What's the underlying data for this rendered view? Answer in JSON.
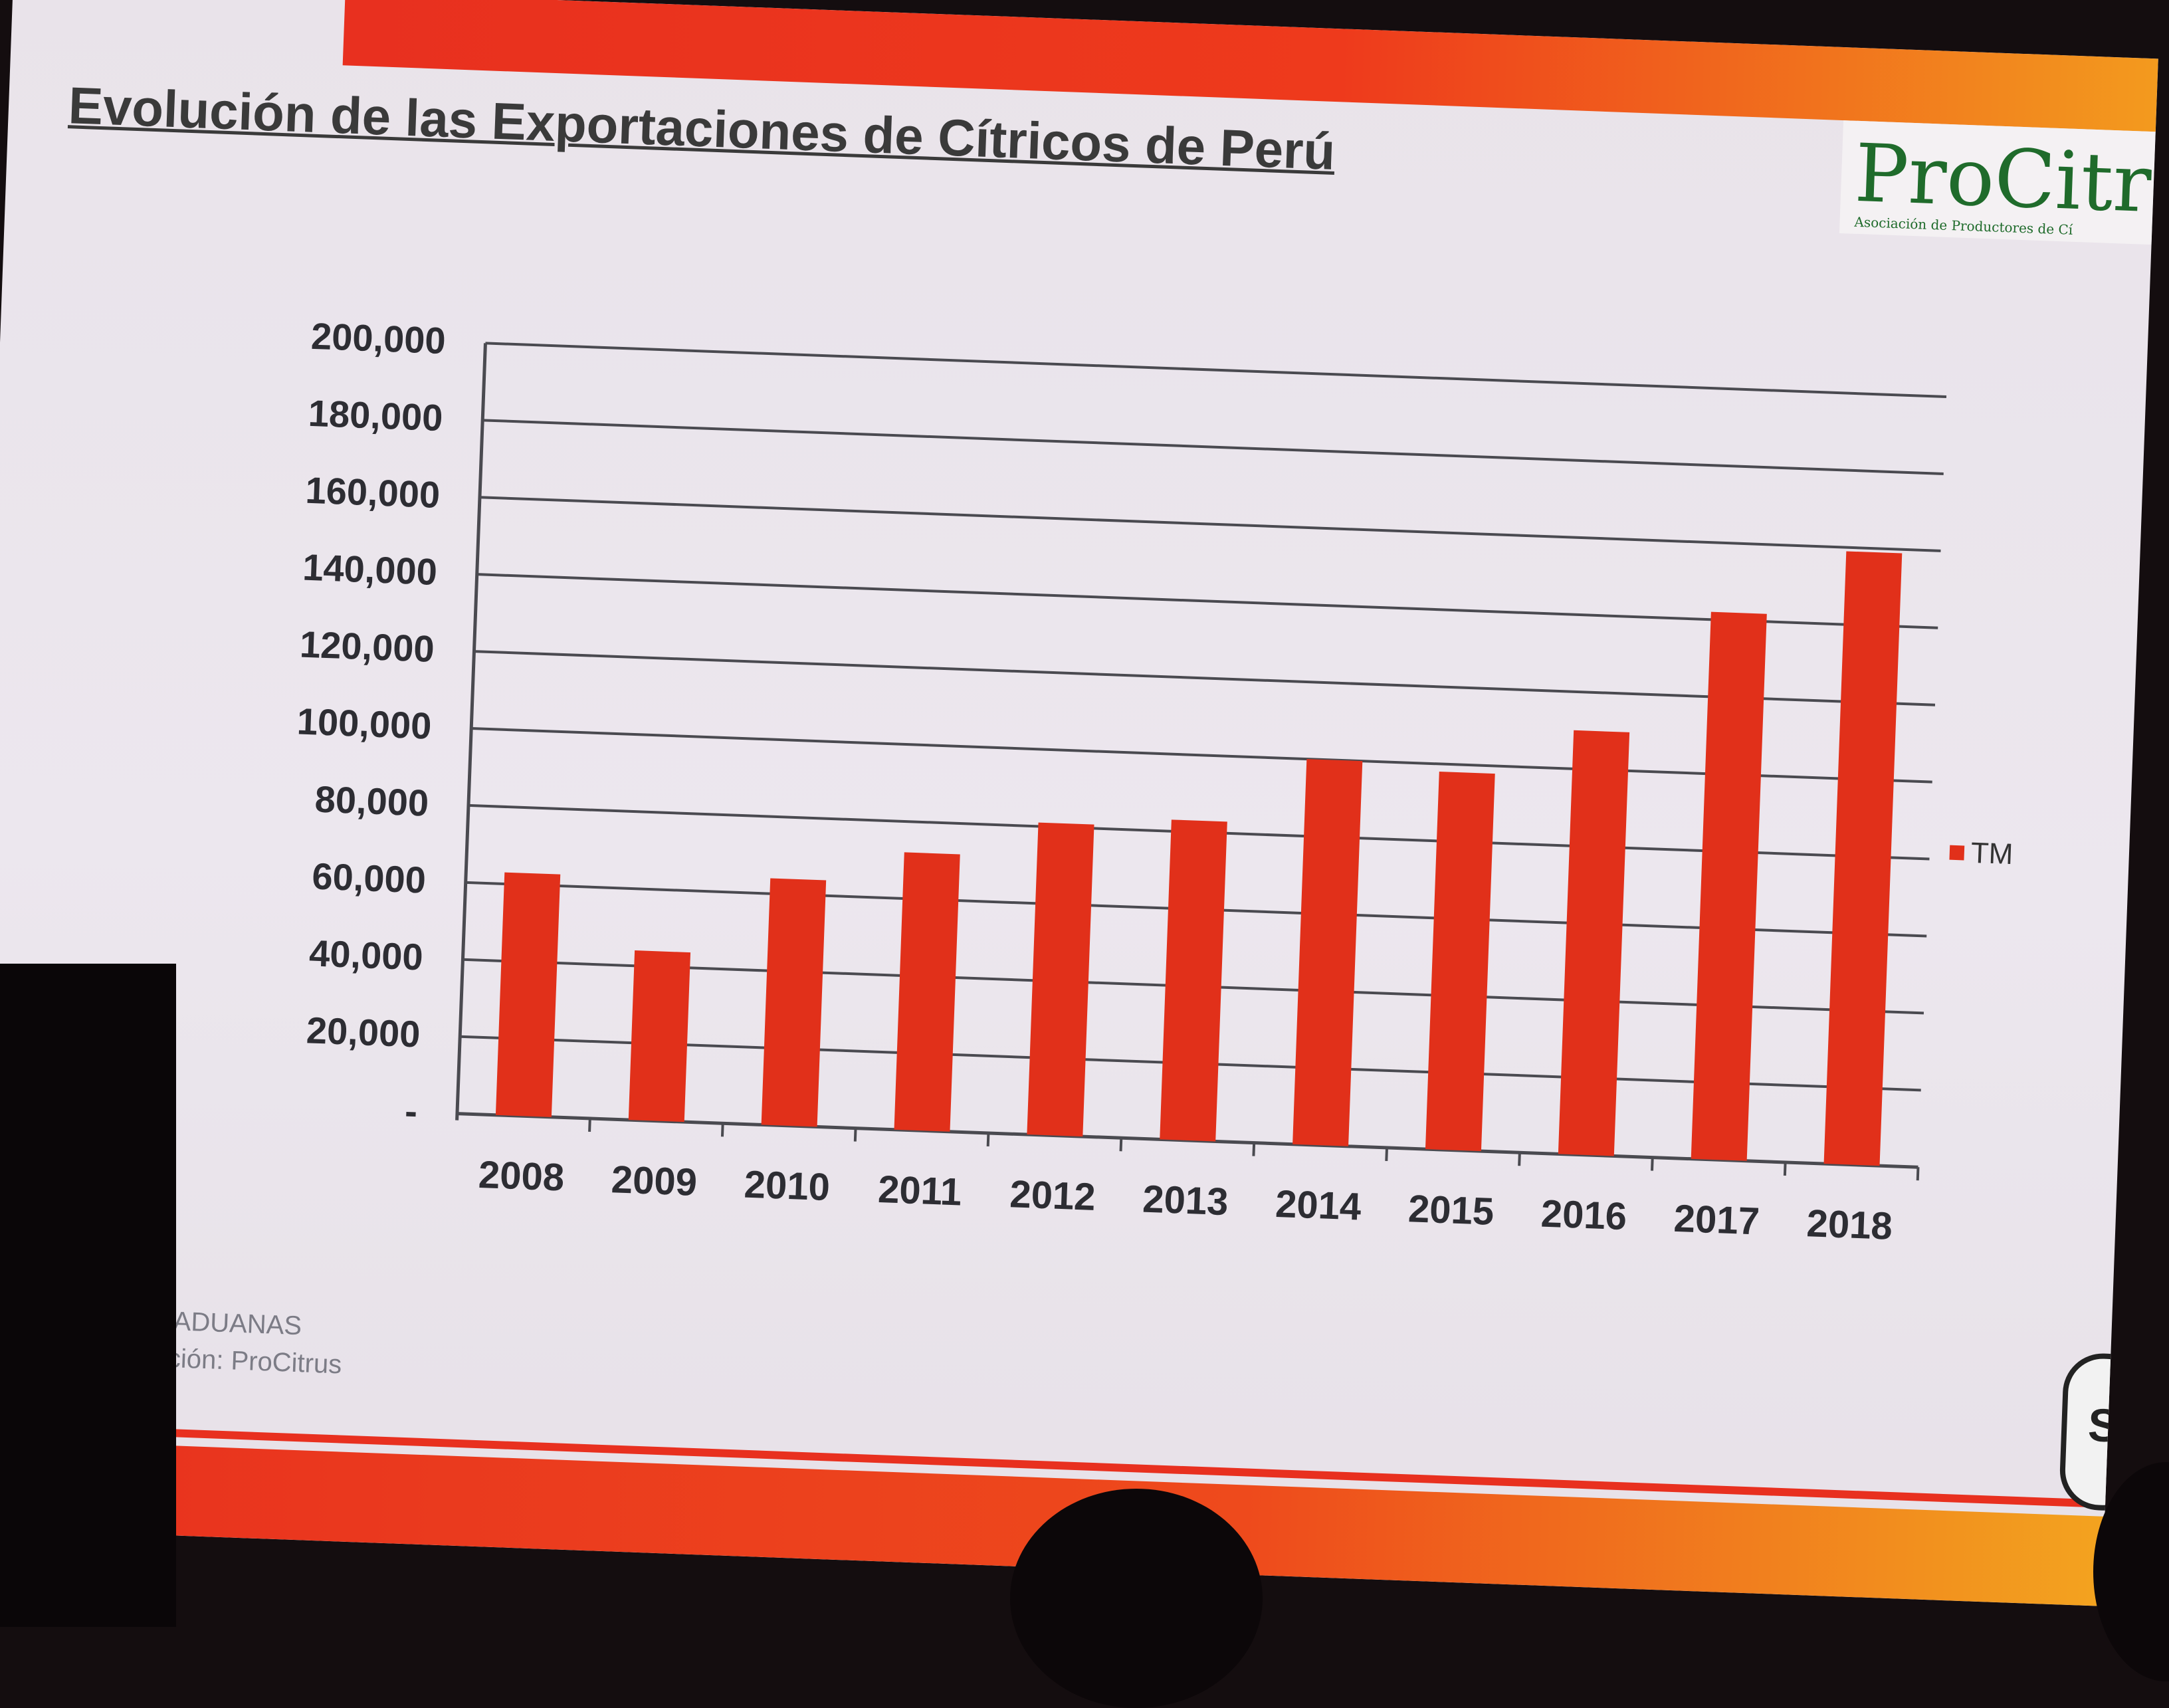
{
  "slide": {
    "title": "Evolución de las Exportaciones de Cítricos de Perú",
    "logo": {
      "text": "ProCitr",
      "subtitle": "Asociación de Productores de Cí"
    },
    "source_line1": "Fuente: ADUANAS",
    "source_line2": "Elaboración: ProCitrus",
    "side_logo_letter": "S"
  },
  "chart_data": {
    "type": "bar",
    "title": "Evolución de las Exportaciones de Cítricos de Perú",
    "categories": [
      "2008",
      "2009",
      "2010",
      "2011",
      "2012",
      "2013",
      "2014",
      "2015",
      "2016",
      "2017",
      "2018"
    ],
    "series": [
      {
        "name": "TM",
        "values": [
          63000,
          44000,
          64000,
          72000,
          81000,
          83000,
          100000,
          98000,
          110000,
          142000,
          159000
        ]
      }
    ],
    "y_ticks": [
      "-",
      "20,000",
      "40,000",
      "60,000",
      "80,000",
      "100,000",
      "120,000",
      "140,000",
      "160,000",
      "180,000",
      "200,000"
    ],
    "ylim": [
      0,
      200000
    ],
    "xlabel": "",
    "ylabel": "",
    "grid": true,
    "legend_position": "right",
    "bar_color": "#e1301a"
  }
}
